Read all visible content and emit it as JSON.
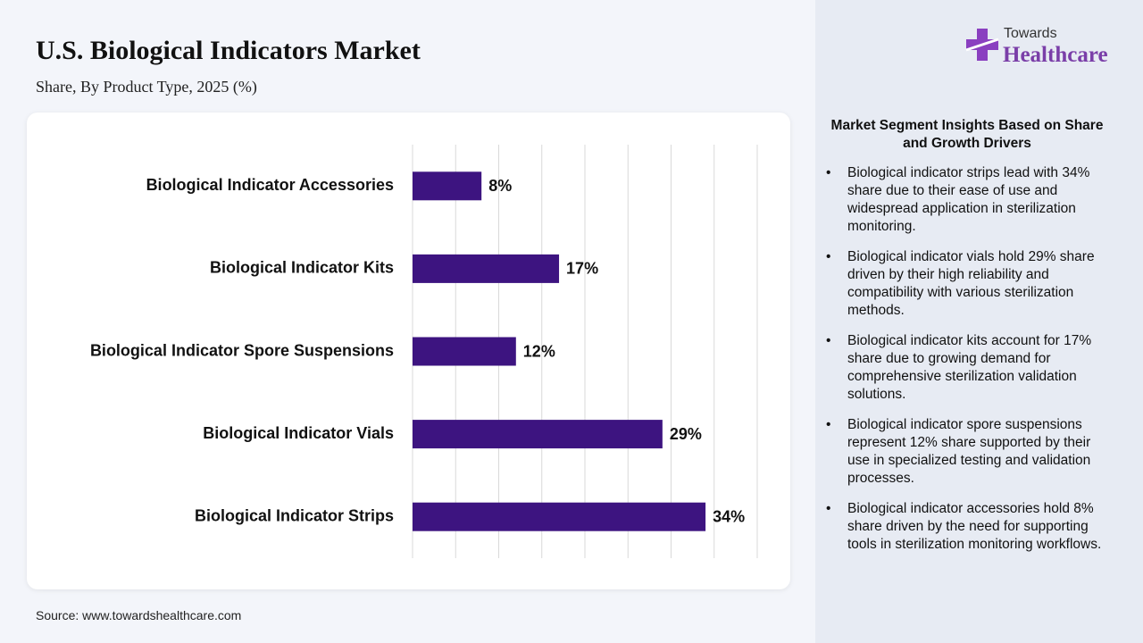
{
  "chart_data": {
    "type": "hbar",
    "title": "U.S. Biological Indicators Market",
    "subtitle": "Share, By Product Type, 2025 (%)",
    "categories": [
      "Biological Indicator Accessories",
      "Biological Indicator Kits",
      "Biological Indicator Spore Suspensions",
      "Biological Indicator Vials",
      "Biological Indicator Strips"
    ],
    "values": [
      8,
      17,
      12,
      29,
      34
    ],
    "value_labels": [
      "8%",
      "17%",
      "12%",
      "29%",
      "34%"
    ],
    "color": "#3d1480",
    "xlim": [
      0,
      40
    ],
    "xticks": [
      0,
      5,
      10,
      15,
      20,
      25,
      30,
      35,
      40
    ],
    "grid": true
  },
  "logo": {
    "line1": "Towards",
    "line2": "Healthcare"
  },
  "insights": {
    "heading": "Market Segment Insights Based on Share and Growth Drivers",
    "items": [
      "Biological indicator strips lead with 34% share due to their ease of use and widespread application in sterilization monitoring.",
      "Biological indicator vials hold 29% share driven by their high reliability and compatibility with various sterilization methods.",
      "Biological indicator kits account for 17% share due to growing demand for comprehensive sterilization validation solutions.",
      "Biological indicator spore suspensions represent 12% share supported by their use in specialized testing and validation processes.",
      "Biological indicator accessories hold 8% share driven by the need for supporting tools in sterilization monitoring workflows."
    ]
  },
  "source": "Source: www.towardshealthcare.com"
}
